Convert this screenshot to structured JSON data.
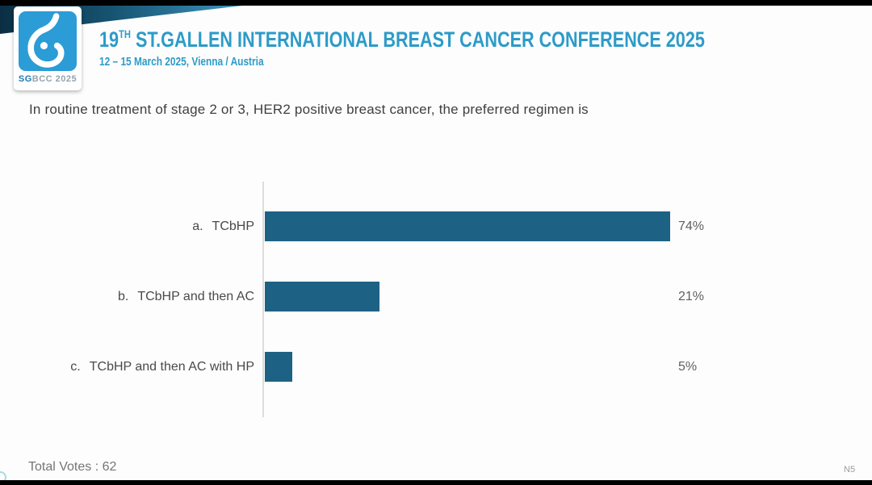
{
  "meta": {
    "accent_blue": "#2d9bc8",
    "logo_blue": "#2b9cd6",
    "bar_color": "#1d6284",
    "wedge_gradient": [
      "#0b2e44",
      "#3b93bd"
    ]
  },
  "header": {
    "logo": {
      "icon": "sgbcc-breast-logo",
      "text_bold": "SG",
      "text_rest": "BCC 2025"
    },
    "title_number": "19",
    "title_sup": "TH",
    "title_main": " ST.GALLEN INTERNATIONAL BREAST CANCER CONFERENCE 2025",
    "subtitle": "12 – 15 March 2025, Vienna / Austria"
  },
  "question": "In routine treatment of stage 2 or 3, HER2 positive breast cancer, the preferred regimen is",
  "chart_data": {
    "type": "bar",
    "orientation": "horizontal",
    "title": "",
    "xlabel": "",
    "ylabel": "",
    "xlim": [
      0,
      100
    ],
    "grid": false,
    "legend": "none",
    "bar_color": "#1d6284",
    "categories": [
      "a. TCbHP",
      "b. TCbHP and then AC",
      "c. TCbHP and then AC with HP"
    ],
    "values": [
      74,
      21,
      5
    ],
    "options": [
      {
        "key": "a.",
        "label": "TCbHP",
        "value": 74,
        "display": "74%"
      },
      {
        "key": "b.",
        "label": "TCbHP and then AC",
        "value": 21,
        "display": "21%"
      },
      {
        "key": "c.",
        "label": "TCbHP and then AC with HP",
        "value": 5,
        "display": "5%"
      }
    ]
  },
  "footer": {
    "total_votes": "Total Votes : 62",
    "slide_ref": "N5"
  }
}
